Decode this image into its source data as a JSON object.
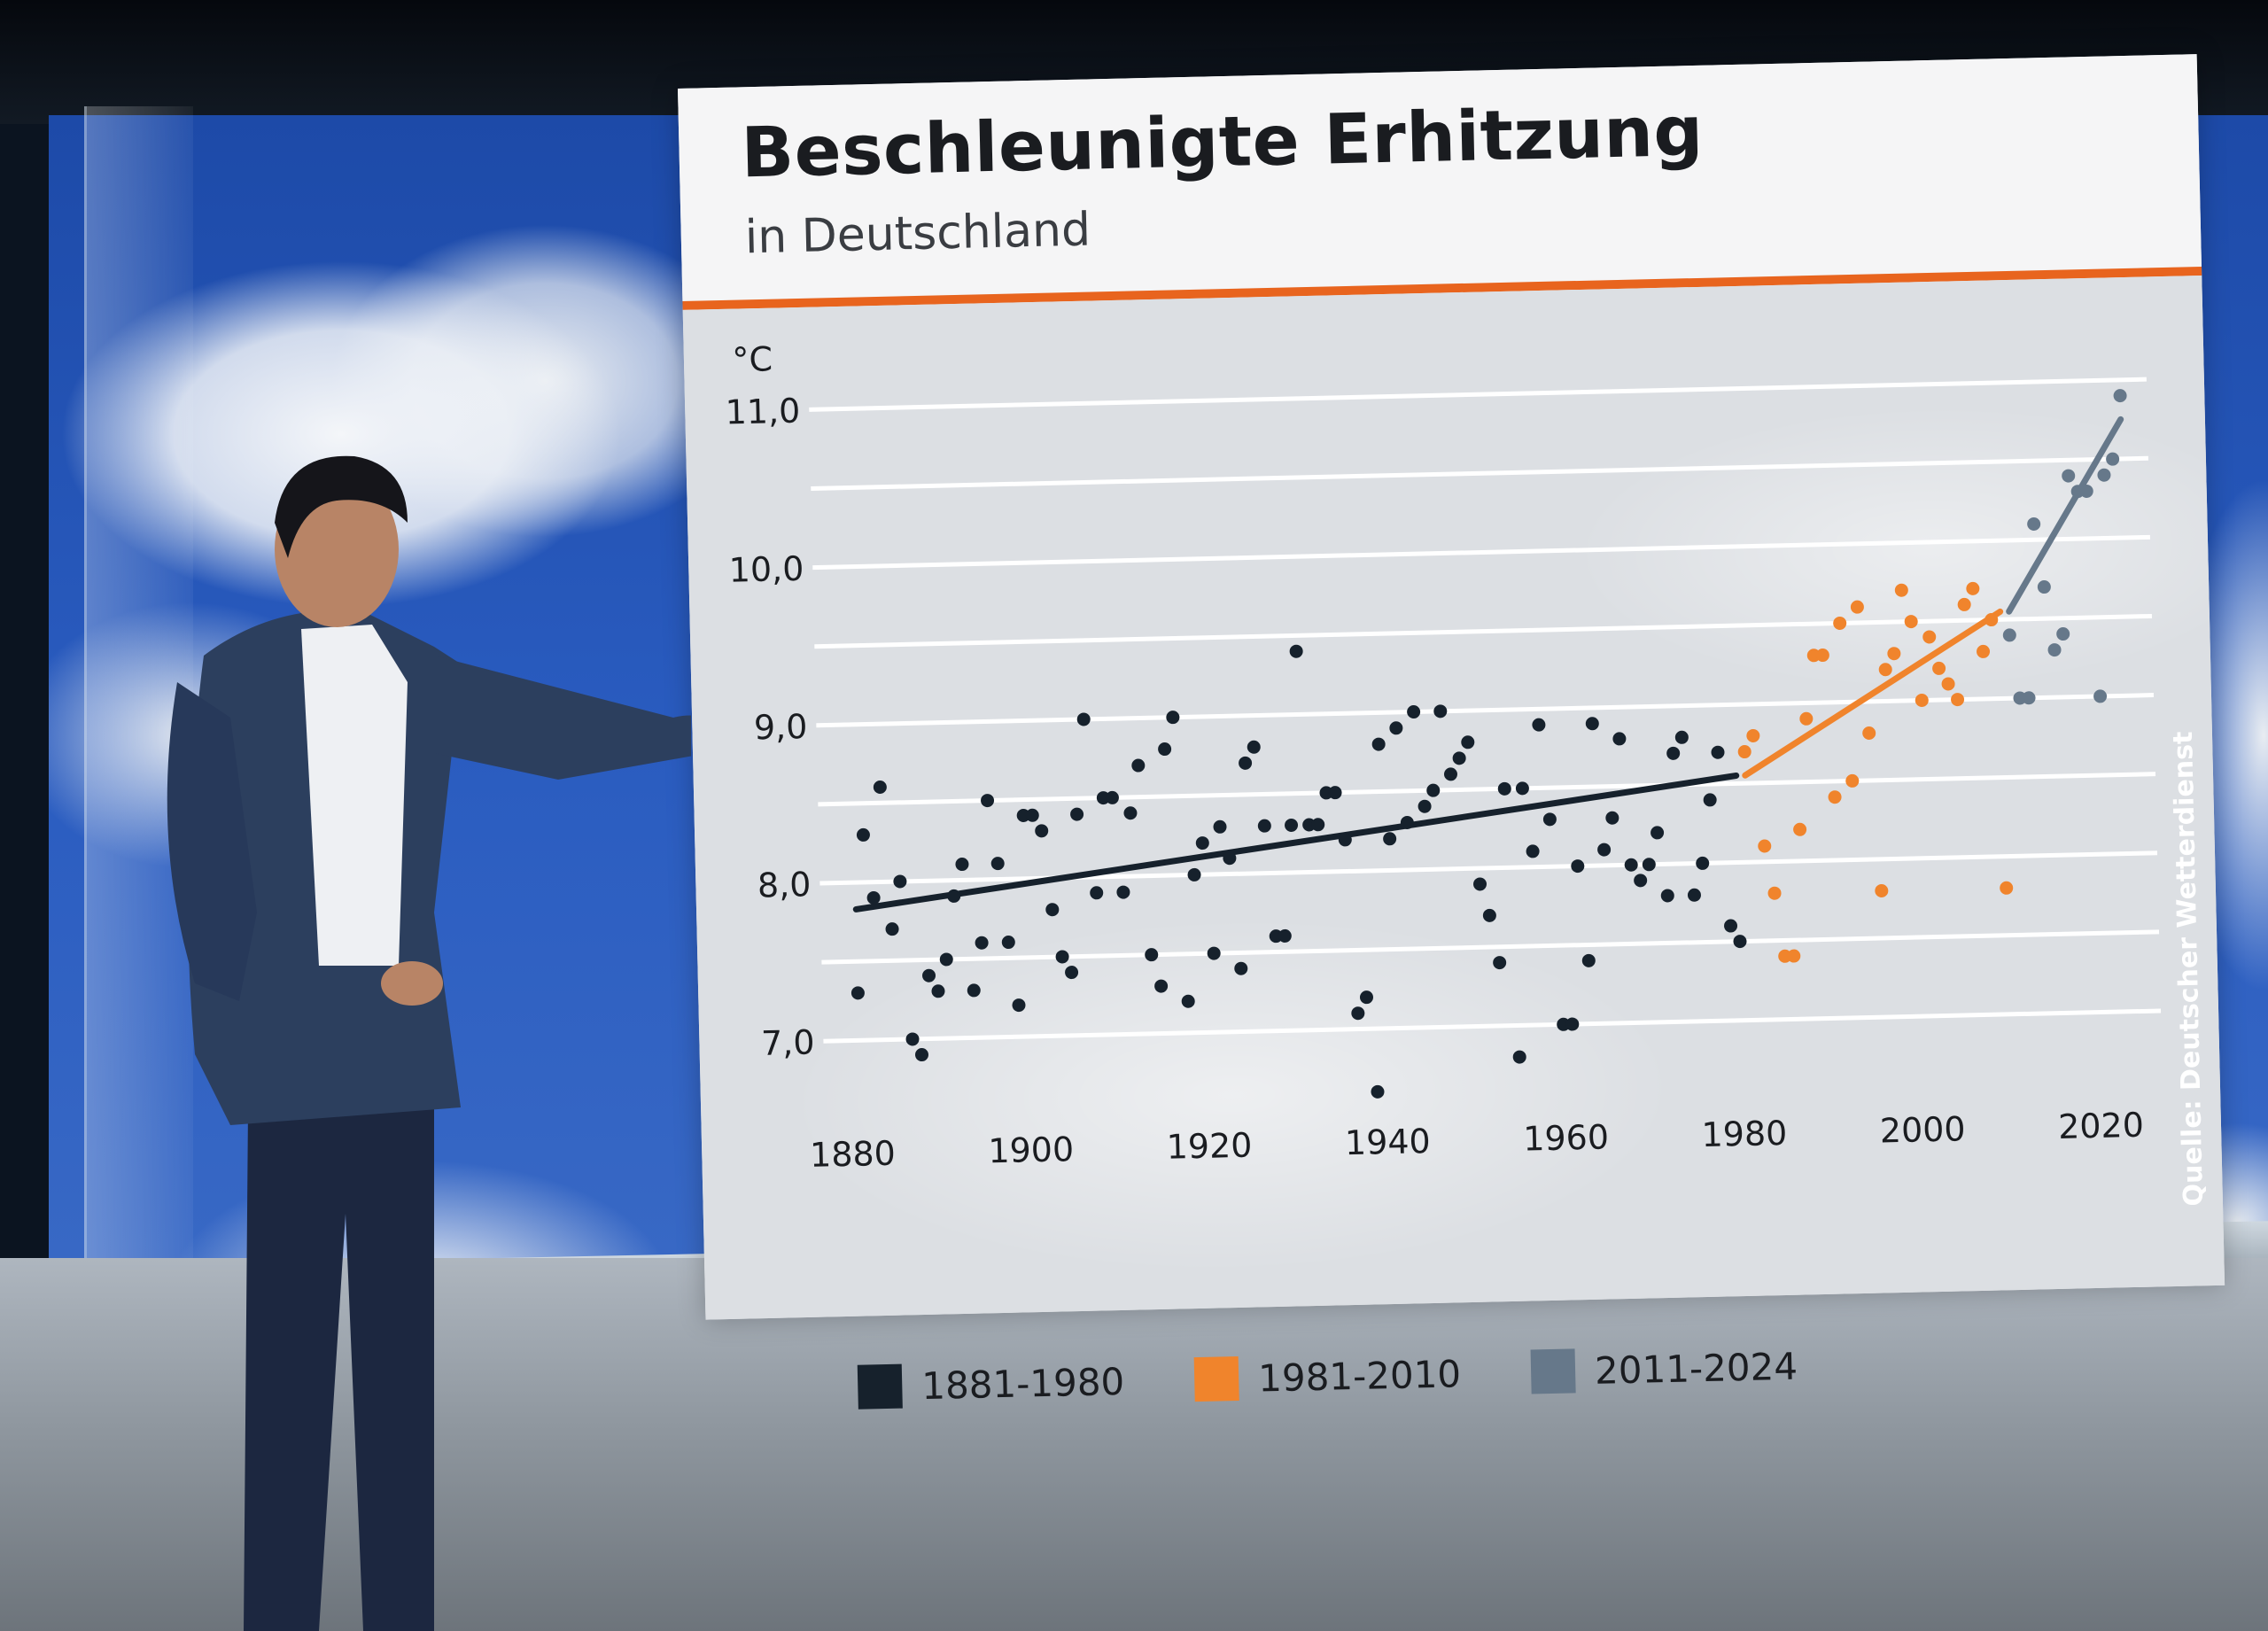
{
  "header": {
    "title": "Beschleunigte Erhitzung",
    "subtitle": "in Deutschland"
  },
  "source": "Quelle: Deutscher Wetterdienst",
  "colors": {
    "period_1": "#16212c",
    "period_2": "#f0842c",
    "period_3": "#66788a",
    "accent_rule": "#e8641e"
  },
  "chart_data": {
    "type": "scatter",
    "ylabel": "°C",
    "xlim": [
      1878,
      2027
    ],
    "ylim": [
      6.6,
      11.2
    ],
    "x_ticks": [
      1880,
      1900,
      1920,
      1940,
      1960,
      1980,
      2000,
      2020
    ],
    "y_ticks": [
      7.0,
      8.0,
      9.0,
      10.0,
      11.0
    ],
    "y_tick_labels": [
      "7,0",
      "8,0",
      "9,0",
      "10,0",
      "11,0"
    ],
    "grid": true,
    "legend_position": "bottom-left",
    "series": [
      {
        "name": "1881-1980",
        "color": "#16212c",
        "x": [
          1881,
          1882,
          1883,
          1884,
          1885,
          1886,
          1887,
          1888,
          1889,
          1890,
          1891,
          1892,
          1893,
          1894,
          1895,
          1896,
          1897,
          1898,
          1899,
          1900,
          1901,
          1902,
          1903,
          1904,
          1905,
          1906,
          1907,
          1908,
          1909,
          1910,
          1911,
          1912,
          1913,
          1914,
          1915,
          1916,
          1917,
          1918,
          1919,
          1920,
          1921,
          1922,
          1923,
          1924,
          1925,
          1926,
          1927,
          1928,
          1929,
          1930,
          1931,
          1932,
          1933,
          1934,
          1935,
          1936,
          1937,
          1938,
          1939,
          1940,
          1941,
          1942,
          1943,
          1944,
          1945,
          1946,
          1947,
          1948,
          1949,
          1950,
          1951,
          1952,
          1953,
          1954,
          1955,
          1956,
          1957,
          1958,
          1959,
          1960,
          1961,
          1962,
          1963,
          1964,
          1965,
          1966,
          1967,
          1968,
          1969,
          1970,
          1971,
          1972,
          1973,
          1974,
          1975,
          1976,
          1977,
          1978,
          1979,
          1980
        ],
        "y": [
          7.3,
          8.3,
          7.9,
          8.6,
          7.7,
          8.0,
          7.0,
          6.9,
          7.4,
          7.3,
          7.5,
          7.9,
          8.1,
          7.3,
          7.6,
          8.5,
          8.1,
          7.6,
          7.2,
          8.4,
          8.4,
          8.3,
          7.8,
          7.5,
          7.4,
          8.4,
          9.0,
          7.9,
          8.5,
          8.5,
          7.9,
          8.4,
          8.7,
          7.5,
          7.3,
          8.8,
          9.0,
          7.2,
          8.0,
          8.2,
          7.5,
          8.3,
          8.1,
          7.4,
          8.7,
          8.8,
          8.3,
          7.6,
          7.6,
          8.3,
          9.4,
          8.3,
          8.3,
          8.5,
          8.5,
          8.2,
          7.1,
          7.2,
          6.6,
          8.8,
          8.2,
          8.9,
          8.3,
          9.0,
          8.4,
          8.5,
          9.0,
          8.6,
          8.7,
          8.8,
          7.9,
          7.7,
          7.4,
          8.5,
          6.8,
          8.5,
          8.1,
          8.9,
          8.3,
          7.0,
          7.0,
          8.0,
          7.4,
          8.9,
          8.1,
          8.3,
          8.8,
          8.0,
          7.9,
          8.0,
          8.2,
          7.8,
          8.7,
          8.8,
          7.8,
          8.0,
          8.4,
          8.7,
          7.6,
          7.5
        ]
      },
      {
        "name": "1981-2010",
        "color": "#f0842c",
        "x": [
          1981,
          1982,
          1983,
          1984,
          1985,
          1986,
          1987,
          1988,
          1989,
          1990,
          1991,
          1992,
          1993,
          1994,
          1995,
          1996,
          1997,
          1998,
          1999,
          2000,
          2001,
          2002,
          2003,
          2004,
          2005,
          2006,
          2007,
          2008,
          2009,
          2010
        ],
        "y": [
          8.7,
          8.8,
          8.1,
          7.8,
          7.4,
          7.4,
          8.2,
          8.9,
          9.3,
          9.3,
          8.4,
          9.5,
          8.5,
          9.6,
          8.8,
          7.8,
          9.2,
          9.3,
          9.7,
          9.5,
          9.0,
          9.4,
          9.2,
          9.1,
          9.0,
          9.6,
          9.7,
          9.3,
          9.5,
          7.8
        ]
      },
      {
        "name": "2011-2024",
        "color": "#66788a",
        "x": [
          2011,
          2012,
          2013,
          2014,
          2015,
          2016,
          2017,
          2018,
          2019,
          2020,
          2021,
          2022,
          2023,
          2024
        ],
        "y": [
          9.4,
          9.0,
          9.0,
          10.1,
          9.7,
          9.3,
          9.4,
          10.4,
          10.3,
          10.3,
          9.0,
          10.4,
          10.5,
          10.9
        ]
      }
    ],
    "trends": [
      {
        "series": "1881-1980",
        "x": [
          1881,
          1980
        ],
        "y": [
          7.83,
          8.55
        ],
        "color": "#16212c"
      },
      {
        "series": "1981-2010",
        "x": [
          1981,
          2010
        ],
        "y": [
          8.55,
          9.55
        ],
        "color": "#f0842c"
      },
      {
        "series": "2011-2024",
        "x": [
          2011,
          2024
        ],
        "y": [
          9.55,
          10.75
        ],
        "color": "#66788a"
      }
    ]
  }
}
